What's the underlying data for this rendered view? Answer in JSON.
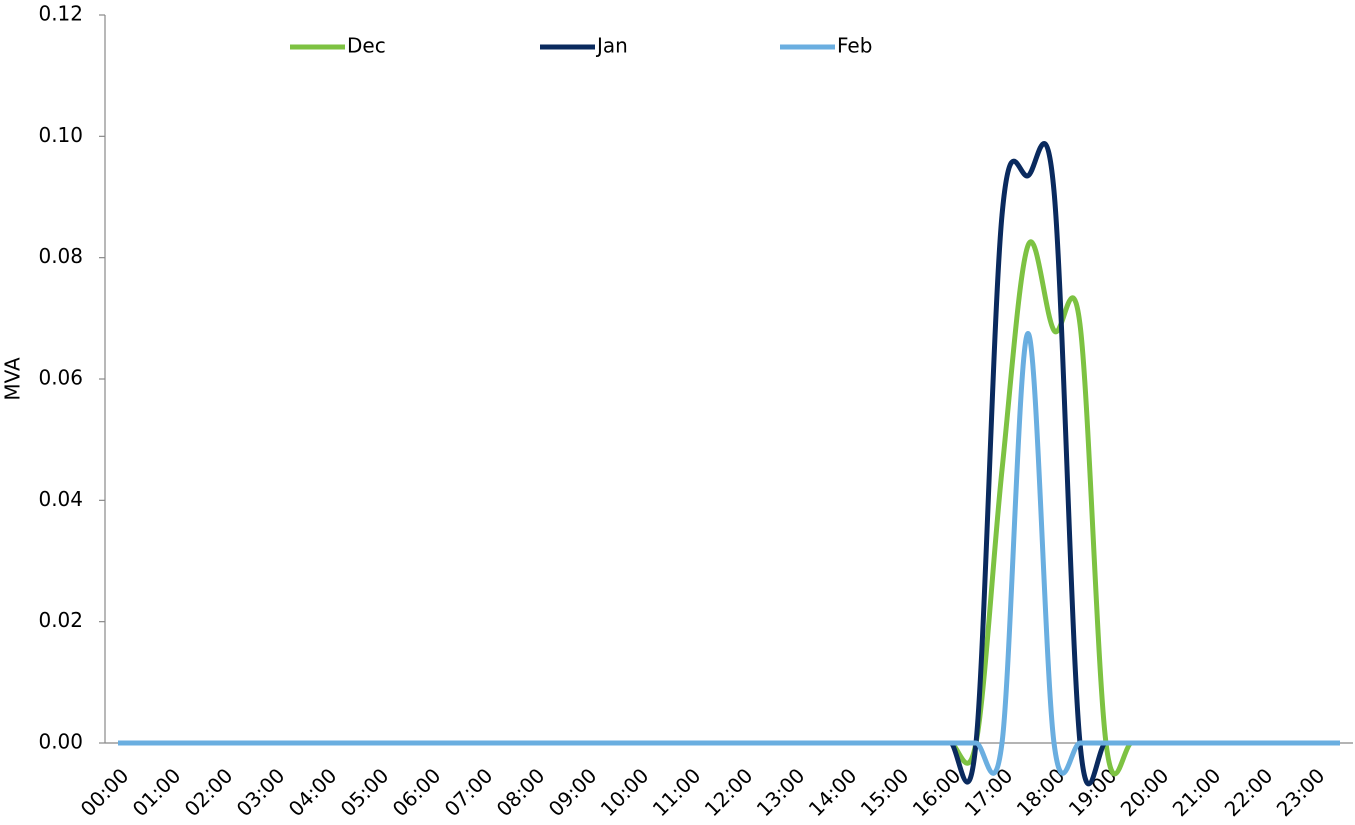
{
  "chart_data": {
    "type": "line",
    "y_label": "MVA",
    "categories": [
      "00:00",
      null,
      "01:00",
      null,
      "02:00",
      null,
      "03:00",
      null,
      "04:00",
      null,
      "05:00",
      null,
      "06:00",
      null,
      "07:00",
      null,
      "08:00",
      null,
      "09:00",
      null,
      "10:00",
      null,
      "11:00",
      null,
      "12:00",
      null,
      "13:00",
      null,
      "14:00",
      null,
      "15:00",
      null,
      "16:00",
      null,
      "17:00",
      null,
      "18:00",
      null,
      "19:00",
      null,
      "20:00",
      null,
      "21:00",
      null,
      "22:00",
      null,
      "23:00",
      null
    ],
    "series": [
      {
        "name": "Dec",
        "color": "#7dc242",
        "values": [
          0,
          0,
          0,
          0,
          0,
          0,
          0,
          0,
          0,
          0,
          0,
          0,
          0,
          0,
          0,
          0,
          0,
          0,
          0,
          0,
          0,
          0,
          0,
          0,
          0,
          0,
          0,
          0,
          0,
          0,
          0,
          0,
          0,
          0,
          0.045,
          0.082,
          0.068,
          0.069,
          0,
          0,
          0,
          0,
          0,
          0,
          0,
          0,
          0,
          0
        ]
      },
      {
        "name": "Jan",
        "color": "#0a2a5e",
        "values": [
          0,
          0,
          0,
          0,
          0,
          0,
          0,
          0,
          0,
          0,
          0,
          0,
          0,
          0,
          0,
          0,
          0,
          0,
          0,
          0,
          0,
          0,
          0,
          0,
          0,
          0,
          0,
          0,
          0,
          0,
          0,
          0,
          0,
          0,
          0.087,
          0.0935,
          0.091,
          0,
          0,
          0,
          0,
          0,
          0,
          0,
          0,
          0,
          0,
          0
        ]
      },
      {
        "name": "Feb",
        "color": "#6aaee0",
        "values": [
          0,
          0,
          0,
          0,
          0,
          0,
          0,
          0,
          0,
          0,
          0,
          0,
          0,
          0,
          0,
          0,
          0,
          0,
          0,
          0,
          0,
          0,
          0,
          0,
          0,
          0,
          0,
          0,
          0,
          0,
          0,
          0,
          0,
          0,
          0,
          0.0675,
          0,
          0,
          0,
          0,
          0,
          0,
          0,
          0,
          0,
          0,
          0,
          0
        ]
      }
    ],
    "ylim": [
      0,
      0.12
    ],
    "yticks": [
      {
        "value": 0,
        "label": "0.00"
      },
      {
        "value": 0.02,
        "label": "0.02"
      },
      {
        "value": 0.04,
        "label": "0.04"
      },
      {
        "value": 0.06,
        "label": "0.06"
      },
      {
        "value": 0.08,
        "label": "0.08"
      },
      {
        "value": 0.1,
        "label": "0.10"
      },
      {
        "value": 0.12,
        "label": "0.12"
      }
    ],
    "legend": "top",
    "grid": false
  }
}
